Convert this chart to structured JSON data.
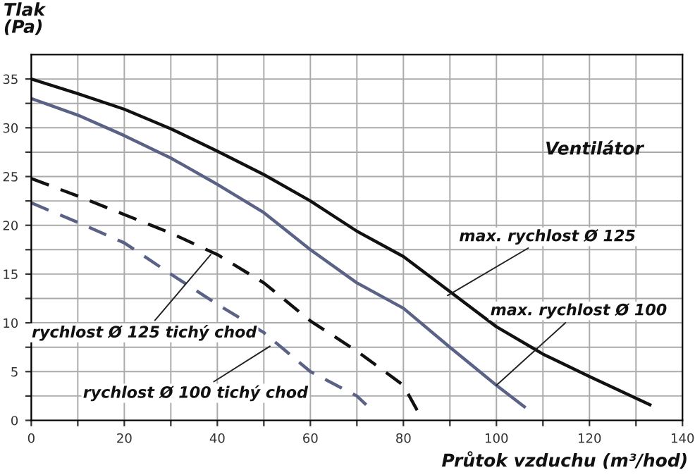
{
  "chart_data": {
    "type": "line",
    "title": "Ventilátor",
    "xlabel": "Průtok vzduchu (m³/hod)",
    "ylabel": "Tlak\n(Pa)",
    "xlim": [
      0,
      140
    ],
    "ylim": [
      0,
      37.5
    ],
    "xticks": [
      0,
      {
        "value": 10,
        "label": null
      },
      20,
      {
        "value": 30,
        "label": null
      },
      40,
      {
        "value": 50,
        "label": null
      },
      60,
      {
        "value": 70,
        "label": null
      },
      80,
      {
        "value": 90,
        "label": null
      },
      100,
      {
        "value": 110,
        "label": null
      },
      120,
      {
        "value": 130,
        "label": null
      },
      140
    ],
    "yticks": [
      0,
      {
        "value": 2.5,
        "label": null
      },
      5,
      {
        "value": 7.5,
        "label": null
      },
      10,
      {
        "value": 12.5,
        "label": null
      },
      15,
      {
        "value": 17.5,
        "label": null
      },
      20,
      {
        "value": 22.5,
        "label": null
      },
      25,
      {
        "value": 27.5,
        "label": null
      },
      30,
      {
        "value": 32.5,
        "label": null
      },
      35
    ],
    "grid": true,
    "legend": false,
    "marker": "none",
    "series": [
      {
        "color": "#111111",
        "line_style": "solid",
        "x": [
          0,
          10,
          20,
          30,
          40,
          50,
          60,
          70,
          80,
          90,
          100,
          110,
          120,
          133
        ],
        "values": [
          35,
          33.5,
          31.9,
          29.9,
          27.6,
          25.2,
          22.5,
          19.4,
          16.8,
          13.2,
          9.6,
          6.8,
          4.5,
          1.6
        ]
      },
      {
        "color": "#5a6286",
        "line_style": "solid",
        "x": [
          0,
          10,
          20,
          30,
          40,
          50,
          60,
          70,
          80,
          90,
          100,
          106
        ],
        "values": [
          33,
          31.3,
          29.2,
          26.9,
          24.2,
          21.3,
          17.5,
          14.1,
          11.5,
          7.5,
          3.6,
          1.4
        ]
      },
      {
        "color": "#111111",
        "line_style": "dashed",
        "x": [
          0,
          10,
          20,
          30,
          40,
          50,
          60,
          70,
          80,
          83
        ],
        "values": [
          24.8,
          23,
          21.1,
          19.2,
          17,
          14.1,
          10.2,
          7.1,
          3.6,
          1
        ]
      },
      {
        "color": "#5a6286",
        "line_style": "dashed",
        "x": [
          0,
          10,
          20,
          30,
          40,
          50,
          60,
          70,
          72
        ],
        "values": [
          22.3,
          20.3,
          18.2,
          15,
          11.9,
          9,
          5,
          2.5,
          1.6
        ]
      }
    ],
    "annotations": [
      {
        "text": "max. rychlost Ø 125",
        "x": 89.5,
        "y": 12.8
      },
      {
        "text": "max. rychlost Ø 100",
        "x": 100,
        "y": 3.6
      },
      {
        "text": "rychlost Ø 125 tichý chod",
        "x": 38.6,
        "y": 17
      },
      {
        "text": "rychlost Ø 100 tichý chod",
        "x": 51.3,
        "y": 7.6
      }
    ]
  }
}
